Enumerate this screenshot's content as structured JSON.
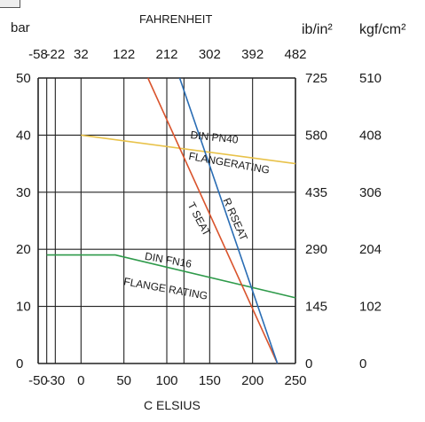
{
  "chart_data": {
    "type": "line",
    "title": "",
    "left_axis_label": "bar",
    "top_axis_label": "FAHRENHEIT",
    "bottom_axis_label": "C ELSIUS",
    "right_axis1_label": "ib/in²",
    "right_axis2_label": "kgf/cm²",
    "xlim": [
      -50,
      250
    ],
    "ylim": [
      0,
      50
    ],
    "x_ticks": [
      {
        "value": -50,
        "label": "-50"
      },
      {
        "value": -30,
        "label": "-30"
      },
      {
        "value": 0,
        "label": "0"
      },
      {
        "value": 50,
        "label": "50"
      },
      {
        "value": 100,
        "label": "100"
      },
      {
        "value": 150,
        "label": "150"
      },
      {
        "value": 200,
        "label": "200"
      },
      {
        "value": 250,
        "label": "250"
      }
    ],
    "x_grid": [
      -50,
      -40,
      -30,
      0,
      50,
      100,
      120,
      150,
      200,
      250
    ],
    "top_ticks": [
      {
        "value": -50,
        "label": "-58"
      },
      {
        "value": -30,
        "label": "-22"
      },
      {
        "value": 0,
        "label": "32"
      },
      {
        "value": 50,
        "label": "122"
      },
      {
        "value": 100,
        "label": "212"
      },
      {
        "value": 150,
        "label": "302"
      },
      {
        "value": 200,
        "label": "392"
      },
      {
        "value": 250,
        "label": "482"
      }
    ],
    "y_ticks": [
      {
        "value": 0,
        "label": "0"
      },
      {
        "value": 10,
        "label": "10"
      },
      {
        "value": 20,
        "label": "20"
      },
      {
        "value": 30,
        "label": "30"
      },
      {
        "value": 40,
        "label": "40"
      },
      {
        "value": 50,
        "label": "50"
      }
    ],
    "right_ticks_psi": [
      {
        "value": 0,
        "label": "0"
      },
      {
        "value": 10,
        "label": "145"
      },
      {
        "value": 20,
        "label": "290"
      },
      {
        "value": 30,
        "label": "435"
      },
      {
        "value": 40,
        "label": "580"
      },
      {
        "value": 50,
        "label": "725"
      }
    ],
    "right_ticks_kgf": [
      {
        "value": 0,
        "label": "0"
      },
      {
        "value": 10,
        "label": "102"
      },
      {
        "value": 20,
        "label": "204"
      },
      {
        "value": 30,
        "label": "306"
      },
      {
        "value": 40,
        "label": "408"
      },
      {
        "value": 50,
        "label": "510"
      }
    ],
    "grid": true,
    "series": [
      {
        "key": "pn40",
        "color": "#e8c24a",
        "x": [
          0,
          250
        ],
        "y": [
          40,
          35
        ]
      },
      {
        "key": "pn16",
        "color": "#2e9a4a",
        "x": [
          -40,
          40,
          250
        ],
        "y": [
          19,
          19,
          11.5
        ]
      },
      {
        "key": "tseat",
        "color": "#d9532c",
        "x": [
          78,
          229
        ],
        "y": [
          50,
          0
        ]
      },
      {
        "key": "rseat",
        "color": "#2a6db4",
        "x": [
          115,
          229
        ],
        "y": [
          50,
          0
        ]
      }
    ],
    "annotations": [
      {
        "text": "DIN PN40",
        "x": 155,
        "y": 39,
        "angle": 6
      },
      {
        "text": "FLANGERATING",
        "x": 172,
        "y": 34.5,
        "angle": 10
      },
      {
        "text": "T SEAT",
        "x": 134,
        "y": 25,
        "angle": 62
      },
      {
        "text": "R RSEAT",
        "x": 176,
        "y": 25,
        "angle": 66
      },
      {
        "text": "DIN FN16",
        "x": 101,
        "y": 17.5,
        "angle": 10
      },
      {
        "text": "FLANGE RATING",
        "x": 98,
        "y": 12.5,
        "angle": 10
      }
    ]
  }
}
